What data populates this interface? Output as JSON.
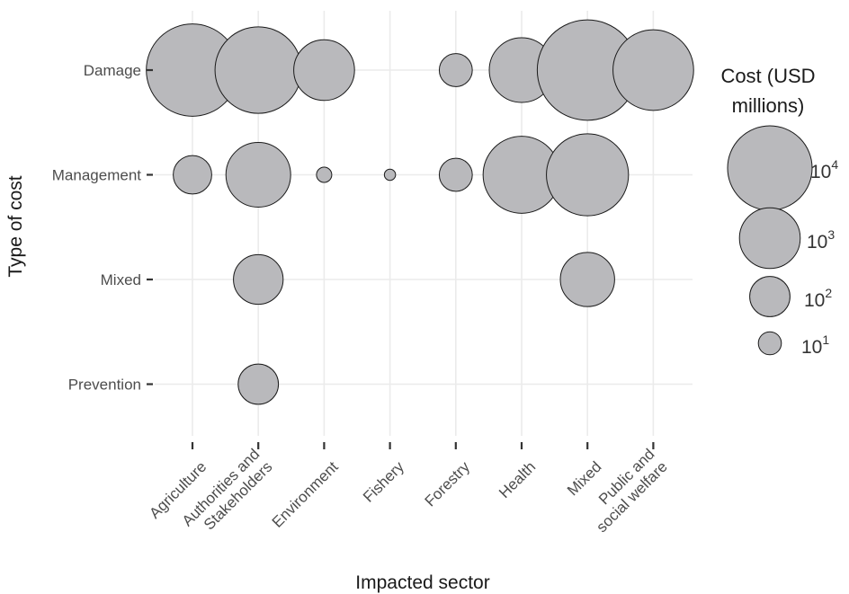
{
  "chart_data": {
    "type": "scatter",
    "subtype": "bubble",
    "xlabel": "Impacted sector",
    "ylabel": "Type of cost",
    "x_categories": [
      "Agriculture",
      "Authorities and Stakeholders",
      "Environment",
      "Fishery",
      "Forestry",
      "Health",
      "Mixed",
      "Public and social welfare"
    ],
    "y_categories": [
      "Damage",
      "Management",
      "Mixed",
      "Prevention"
    ],
    "size_scale": "log10",
    "points": [
      {
        "x": "Agriculture",
        "y": "Damage",
        "cost": 20000
      },
      {
        "x": "Authorities and Stakeholders",
        "y": "Damage",
        "cost": 12000
      },
      {
        "x": "Environment",
        "y": "Damage",
        "cost": 1000
      },
      {
        "x": "Forestry",
        "y": "Damage",
        "cost": 40
      },
      {
        "x": "Health",
        "y": "Damage",
        "cost": 1500
      },
      {
        "x": "Mixed",
        "y": "Damage",
        "cost": 40000
      },
      {
        "x": "Public and social welfare",
        "y": "Damage",
        "cost": 7000
      },
      {
        "x": "Agriculture",
        "y": "Management",
        "cost": 80
      },
      {
        "x": "Authorities and Stakeholders",
        "y": "Management",
        "cost": 1500
      },
      {
        "x": "Environment",
        "y": "Management",
        "cost": 3
      },
      {
        "x": "Fishery",
        "y": "Management",
        "cost": 1.5
      },
      {
        "x": "Forestry",
        "y": "Management",
        "cost": 40
      },
      {
        "x": "Health",
        "y": "Management",
        "cost": 5000
      },
      {
        "x": "Mixed",
        "y": "Management",
        "cost": 8000
      },
      {
        "x": "Authorities and Stakeholders",
        "y": "Mixed",
        "cost": 300
      },
      {
        "x": "Mixed",
        "y": "Mixed",
        "cost": 500
      },
      {
        "x": "Authorities and Stakeholders",
        "y": "Prevention",
        "cost": 100
      }
    ],
    "legend": {
      "title": [
        "Cost (USD",
        "millions)"
      ],
      "position": "right",
      "entries": [
        {
          "base": "10",
          "exp": "4",
          "value": 10000
        },
        {
          "base": "10",
          "exp": "3",
          "value": 1000
        },
        {
          "base": "10",
          "exp": "2",
          "value": 100
        },
        {
          "base": "10",
          "exp": "1",
          "value": 10
        }
      ]
    },
    "grid": true,
    "colors": {
      "fill": "#b9b9bc",
      "stroke": "#1a1a1a",
      "grid": "#ebebeb",
      "tick": "#333333"
    }
  }
}
